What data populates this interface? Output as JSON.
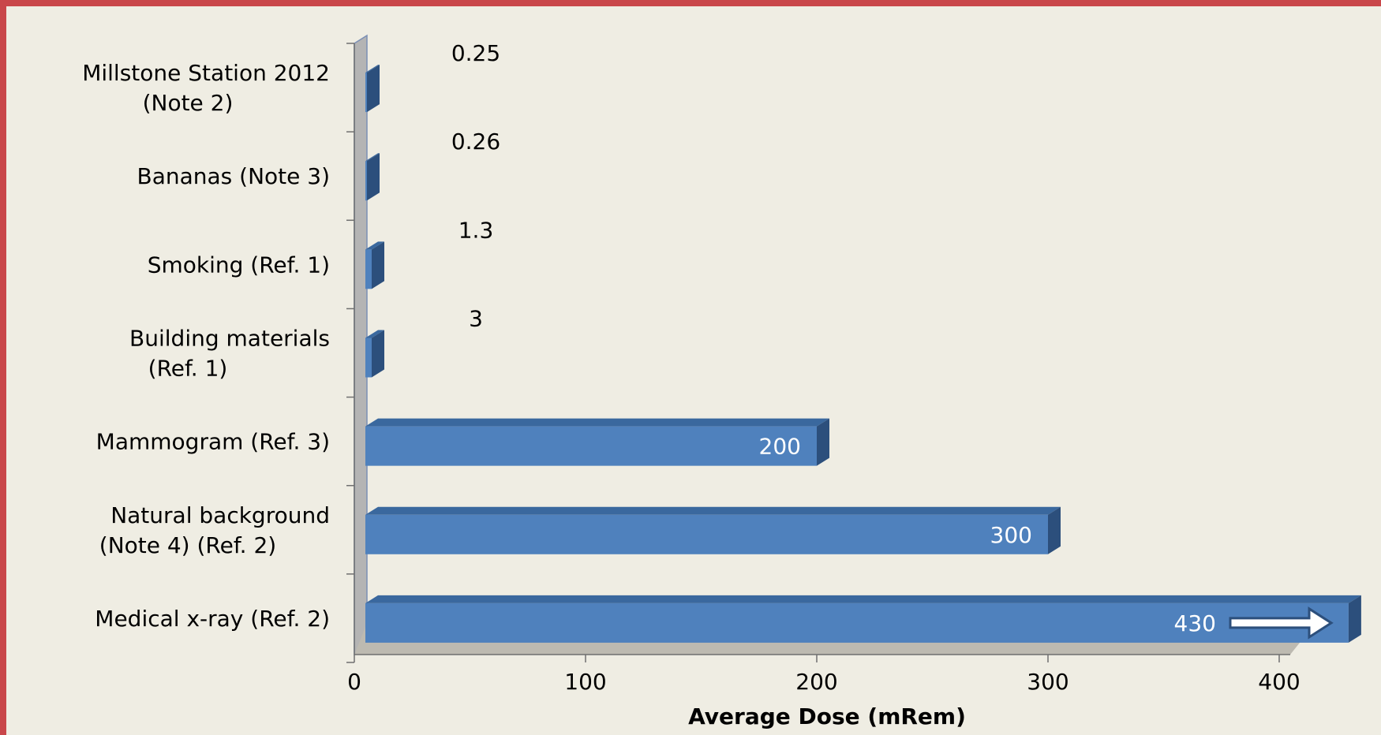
{
  "chart_data": {
    "type": "bar",
    "orientation": "horizontal",
    "style": "3d",
    "categories": [
      [
        "Millstone Station 2012",
        "(Note 2)"
      ],
      [
        "Bananas (Note 3)"
      ],
      [
        "Smoking (Ref. 1)"
      ],
      [
        "Building materials",
        "(Ref. 1)"
      ],
      [
        "Mammogram (Ref. 3)"
      ],
      [
        "Natural background",
        "(Note 4) (Ref. 2)"
      ],
      [
        "Medical x-ray (Ref. 2)"
      ]
    ],
    "values": [
      0.25,
      0.26,
      1.3,
      3,
      200,
      300,
      430
    ],
    "value_labels": [
      "0.25",
      "0.26",
      "1.3",
      "3",
      "200",
      "300",
      "430"
    ],
    "xlabel": "Average Dose (mRem)",
    "xlim": [
      0,
      400
    ],
    "xticks": [
      "0",
      "100",
      "200",
      "300",
      "400"
    ],
    "overflow_arrow_on": "Medical x-ray (Ref. 2)",
    "grid": false,
    "legend": "none",
    "colors": {
      "bar_front": "#4f81bd",
      "bar_top": "#3a689e",
      "bar_side": "#2c4f7c",
      "wall": "#b4b4b4",
      "floor": "#bdbab1",
      "background": "#efede3",
      "border": "#c9474a"
    }
  }
}
